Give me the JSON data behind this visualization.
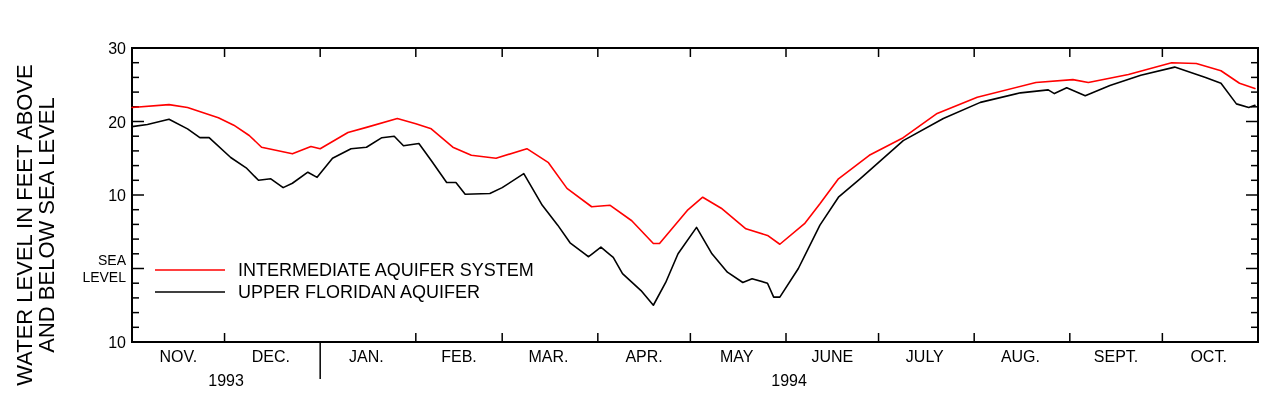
{
  "chart_data": {
    "type": "line",
    "ylabel": "WATER LEVEL IN FEET ABOVE\nAND BELOW SEA LEVEL",
    "xlim": [
      "1993-11-01",
      "1994-11-01"
    ],
    "ylim": [
      -10,
      30
    ],
    "yticks": [
      30,
      {
        "value": 28,
        "label": null
      },
      {
        "value": 26,
        "label": null
      },
      {
        "value": 24,
        "label": null
      },
      {
        "value": 22,
        "label": null
      },
      20,
      {
        "value": 18,
        "label": null
      },
      {
        "value": 16,
        "label": null
      },
      {
        "value": 14,
        "label": null
      },
      {
        "value": 12,
        "label": null
      },
      10,
      {
        "value": 8,
        "label": null
      },
      {
        "value": 6,
        "label": null
      },
      {
        "value": 4,
        "label": null
      },
      {
        "value": 2,
        "label": null
      },
      {
        "value": 0,
        "label": "SEA LEVEL"
      },
      {
        "value": -2,
        "label": null
      },
      {
        "value": -4,
        "label": null
      },
      {
        "value": -6,
        "label": null
      },
      {
        "value": -8,
        "label": null
      },
      {
        "value": -10,
        "label": "10"
      }
    ],
    "xticks": [
      {
        "value": "1993-12-01",
        "label": null
      },
      {
        "value": "1994-01-01",
        "label": null
      },
      {
        "value": "1994-02-01",
        "label": null
      },
      {
        "value": "1994-03-01",
        "label": null
      },
      {
        "value": "1994-04-01",
        "label": null
      },
      {
        "value": "1994-05-01",
        "label": null
      },
      {
        "value": "1994-06-01",
        "label": null
      },
      {
        "value": "1994-07-01",
        "label": null
      },
      {
        "value": "1994-08-01",
        "label": null
      },
      {
        "value": "1994-09-01",
        "label": null
      },
      {
        "value": "1994-10-01",
        "label": null
      },
      {
        "value": "1993-11-16",
        "label": "NOV."
      },
      {
        "value": "1993-12-16",
        "label": "DEC."
      },
      {
        "value": "1994-01-16",
        "label": "JAN."
      },
      {
        "value": "1994-02-15",
        "label": "FEB."
      },
      {
        "value": "1994-03-16",
        "label": "MAR."
      },
      {
        "value": "1994-04-16",
        "label": "APR."
      },
      {
        "value": "1994-05-16",
        "label": "MAY"
      },
      {
        "value": "1994-06-16",
        "label": "JUNE"
      },
      {
        "value": "1994-07-16",
        "label": "JULY"
      },
      {
        "value": "1994-08-16",
        "label": "AUG."
      },
      {
        "value": "1994-09-16",
        "label": "SEPT."
      },
      {
        "value": "1994-10-16",
        "label": "OCT."
      }
    ],
    "annotations": [
      "1993",
      "1994"
    ],
    "legend": "bottom left",
    "grid": false,
    "line_style": "solid",
    "marker": "none",
    "series": [
      {
        "name": "INTERMEDIATE AQUIFER SYSTEM",
        "color": "#ff0000",
        "x": [
          "1993-11-01",
          "1993-11-13",
          "1993-11-19",
          "1993-11-29",
          "1993-12-04",
          "1993-12-09",
          "1993-12-13",
          "1993-12-23",
          "1993-12-29",
          "1994-01-01",
          "1994-01-10",
          "1994-01-16",
          "1994-01-26",
          "1994-02-01",
          "1994-02-06",
          "1994-02-13",
          "1994-02-19",
          "1994-02-27",
          "1994-03-09",
          "1994-03-16",
          "1994-03-22",
          "1994-03-30",
          "1994-04-05",
          "1994-04-12",
          "1994-04-19",
          "1994-04-21",
          "1994-04-30",
          "1994-05-05",
          "1994-05-11",
          "1994-05-19",
          "1994-05-26",
          "1994-05-30",
          "1994-06-07",
          "1994-06-12",
          "1994-06-18",
          "1994-06-28",
          "1994-07-09",
          "1994-07-20",
          "1994-08-02",
          "1994-08-21",
          "1994-09-02",
          "1994-09-07",
          "1994-09-20",
          "1994-10-04",
          "1994-10-12",
          "1994-10-20",
          "1994-10-26",
          "1994-10-31"
        ],
        "values": [
          21.9,
          22.3,
          21.9,
          20.5,
          19.5,
          18.1,
          16.5,
          15.6,
          16.6,
          16.3,
          18.5,
          19.2,
          20.4,
          19.7,
          19.0,
          16.5,
          15.4,
          15.0,
          16.3,
          14.4,
          10.9,
          8.4,
          8.6,
          6.5,
          3.4,
          3.4,
          7.9,
          9.7,
          8.2,
          5.4,
          4.5,
          3.3,
          6.1,
          8.8,
          12.2,
          15.4,
          17.8,
          21.1,
          23.3,
          25.3,
          25.7,
          25.3,
          26.4,
          28.0,
          27.9,
          26.9,
          25.2,
          24.5
        ]
      },
      {
        "name": "UPPER FLORIDAN AQUIFER",
        "color": "#000000",
        "x": [
          "1993-11-01",
          "1993-11-06",
          "1993-11-13",
          "1993-11-19",
          "1993-11-23",
          "1993-11-26",
          "1993-12-03",
          "1993-12-08",
          "1993-12-12",
          "1993-12-16",
          "1993-12-20",
          "1993-12-23",
          "1993-12-28",
          "1993-12-31",
          "1994-01-05",
          "1994-01-11",
          "1994-01-16",
          "1994-01-21",
          "1994-01-25",
          "1994-01-28",
          "1994-02-02",
          "1994-02-06",
          "1994-02-11",
          "1994-02-14",
          "1994-02-17",
          "1994-02-25",
          "1994-03-01",
          "1994-03-08",
          "1994-03-14",
          "1994-03-19",
          "1994-03-23",
          "1994-03-29",
          "1994-04-02",
          "1994-04-06",
          "1994-04-09",
          "1994-04-15",
          "1994-04-19",
          "1994-04-23",
          "1994-04-27",
          "1994-05-03",
          "1994-05-08",
          "1994-05-13",
          "1994-05-18",
          "1994-05-21",
          "1994-05-26",
          "1994-05-28",
          "1994-05-30",
          "1994-06-05",
          "1994-06-12",
          "1994-06-18",
          "1994-06-25",
          "1994-07-09",
          "1994-07-22",
          "1994-08-03",
          "1994-08-16",
          "1994-08-25",
          "1994-08-27",
          "1994-08-31",
          "1994-09-06",
          "1994-09-14",
          "1994-09-24",
          "1994-10-05",
          "1994-10-15",
          "1994-10-20",
          "1994-10-25",
          "1994-10-29",
          "1994-10-31"
        ],
        "values": [
          19.3,
          19.6,
          20.3,
          19.0,
          17.8,
          17.8,
          15.1,
          13.7,
          12.0,
          12.2,
          11.0,
          11.6,
          13.1,
          12.4,
          15.0,
          16.3,
          16.5,
          17.8,
          18.0,
          16.7,
          17.0,
          14.7,
          11.7,
          11.7,
          10.1,
          10.2,
          11.0,
          12.9,
          8.6,
          5.9,
          3.5,
          1.6,
          2.9,
          1.5,
          -0.7,
          -3.0,
          -5.0,
          -1.9,
          2.0,
          5.6,
          2.0,
          -0.5,
          -1.9,
          -1.4,
          -2.0,
          -3.9,
          -3.9,
          0,
          5.9,
          9.7,
          12.2,
          17.4,
          20.4,
          22.6,
          23.9,
          24.3,
          23.8,
          24.6,
          23.5,
          24.9,
          26.3,
          27.4,
          26.0,
          25.2,
          22.4,
          21.9,
          22.2
        ]
      }
    ]
  }
}
